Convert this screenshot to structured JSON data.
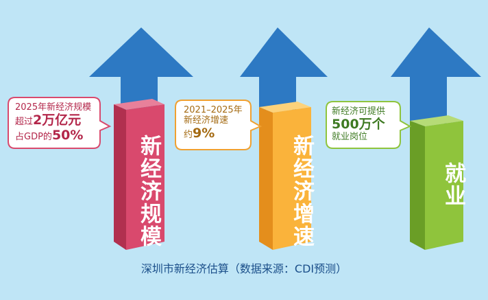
{
  "pillars": [
    {
      "label": "新经济规模",
      "colors": {
        "front": "#d9496d",
        "side": "#b1304f",
        "top": "#e8809a"
      },
      "callout": {
        "line1": "2025年新经济规模",
        "line2_prefix": "超过",
        "line2_highlight": "2万亿元",
        "line3_prefix": "占GDP的",
        "line3_highlight": "50%"
      }
    },
    {
      "label": "新经济增速",
      "colors": {
        "front": "#fab33b",
        "side": "#e48e1c",
        "top": "#fdd27a"
      },
      "callout": {
        "line1": "2021–2025年",
        "line2": "新经济增速",
        "line3_prefix": "约",
        "line3_highlight": "9%"
      }
    },
    {
      "label": "就业",
      "colors": {
        "front": "#8fc43c",
        "side": "#6a9e26",
        "top": "#b6db77"
      },
      "callout": {
        "line1": "新经济可提供",
        "line2_highlight": "500万个",
        "line3": "就业岗位"
      }
    }
  ],
  "arrow_color": "#2d79c3",
  "caption": "深圳市新经济估算（数据来源：CDI预测）"
}
